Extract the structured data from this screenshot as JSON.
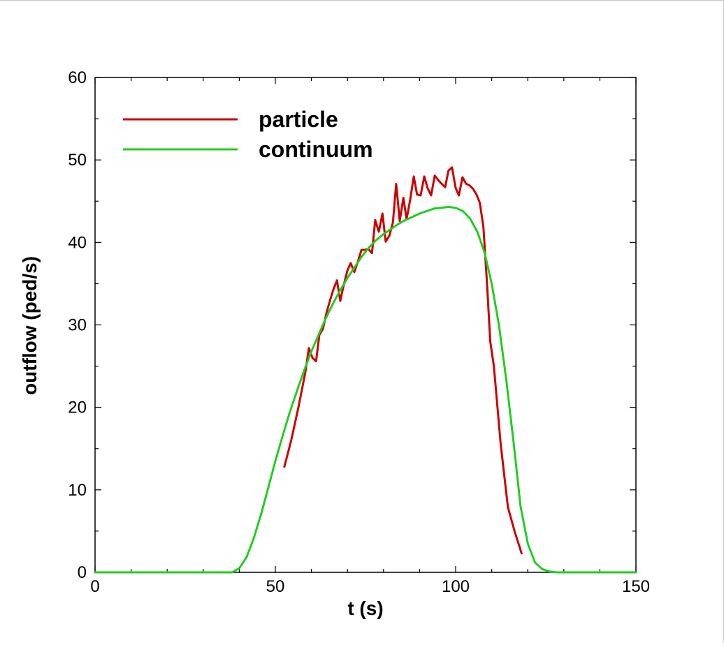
{
  "chart_data": {
    "type": "line",
    "title": "",
    "xlabel": "t (s)",
    "ylabel": "outflow (ped/s)",
    "xlim": [
      0,
      150
    ],
    "ylim": [
      0,
      60
    ],
    "xticks": [
      0,
      50,
      100,
      150
    ],
    "yticks": [
      0,
      10,
      20,
      30,
      40,
      50,
      60
    ],
    "grid": false,
    "legend_position": "top-left",
    "series": [
      {
        "name": "particle",
        "color": "#cc0000",
        "x": [
          52.5,
          54.4,
          56.4,
          58.3,
          59.3,
          60.3,
          61.3,
          62.2,
          63.2,
          64.2,
          65.2,
          66.1,
          67.1,
          68.0,
          69.0,
          70.0,
          70.9,
          71.9,
          72.9,
          73.9,
          74.8,
          75.8,
          76.8,
          77.7,
          78.7,
          79.7,
          80.6,
          81.6,
          82.6,
          83.5,
          84.5,
          85.5,
          86.4,
          87.4,
          88.4,
          89.3,
          90.3,
          91.3,
          92.2,
          93.2,
          94.2,
          95.1,
          96.1,
          97.1,
          98.0,
          99.0,
          100.0,
          100.9,
          101.9,
          102.9,
          103.9,
          104.8,
          105.8,
          106.7,
          107.7,
          108.7,
          109.6,
          110.6,
          112.5,
          114.5,
          116.4,
          118.3
        ],
        "y": [
          12.8,
          16.0,
          20.0,
          24.2,
          27.2,
          26.0,
          25.6,
          28.8,
          29.5,
          31.5,
          33.0,
          34.3,
          35.4,
          32.9,
          34.9,
          36.6,
          37.5,
          36.4,
          37.7,
          39.1,
          39.1,
          39.2,
          38.7,
          42.7,
          41.3,
          43.5,
          40.1,
          40.8,
          42.4,
          47.1,
          42.6,
          45.4,
          42.8,
          45.2,
          48.0,
          45.8,
          45.7,
          48.0,
          46.6,
          45.7,
          48.1,
          47.6,
          47.1,
          46.7,
          48.7,
          49.1,
          46.6,
          45.7,
          47.9,
          47.1,
          46.9,
          46.5,
          45.8,
          44.8,
          41.9,
          35.0,
          28.0,
          25.0,
          15.5,
          7.9,
          4.9,
          2.3
        ]
      },
      {
        "name": "continuum",
        "color": "#22cc22",
        "x": [
          0,
          38,
          40,
          42,
          44,
          46,
          48,
          50,
          52,
          54,
          56,
          58,
          60,
          62,
          64,
          66,
          68,
          70,
          72,
          74,
          76,
          78,
          80,
          82,
          84,
          86,
          88,
          90,
          92,
          94,
          96,
          98,
          100,
          102,
          104,
          106,
          108,
          110,
          112,
          114,
          116,
          118,
          120,
          122,
          124,
          126,
          128,
          130,
          150
        ],
        "y": [
          0,
          0,
          0.5,
          1.8,
          4.1,
          7.0,
          10.2,
          13.5,
          16.5,
          19.4,
          22.0,
          24.5,
          26.8,
          28.8,
          30.8,
          32.6,
          34.2,
          35.7,
          37.0,
          38.3,
          39.4,
          40.3,
          41.0,
          41.6,
          42.2,
          42.7,
          43.1,
          43.5,
          43.8,
          44.1,
          44.2,
          44.3,
          44.2,
          43.8,
          42.9,
          41.3,
          38.8,
          35.0,
          30.0,
          23.5,
          16.0,
          8.0,
          3.5,
          1.2,
          0.4,
          0.1,
          0,
          0,
          0
        ]
      }
    ]
  }
}
